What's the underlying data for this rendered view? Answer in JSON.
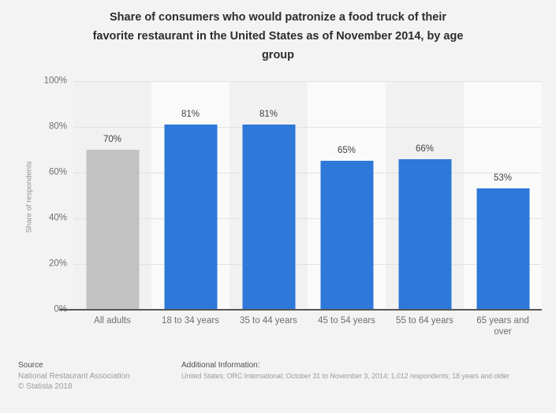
{
  "header": {
    "title_lines": [
      "Share of consumers who would patronize a food truck of their",
      "favorite restaurant in the United States as of November 2014, by age",
      "group"
    ]
  },
  "chart_data": {
    "type": "bar",
    "title": "Share of consumers who would patronize a food truck of their favorite restaurant in the United States as of November 2014, by age group",
    "categories": [
      "All adults",
      "18 to 34 years",
      "35 to 44 years",
      "45 to 54 years",
      "55 to 64 years",
      "65 years and over"
    ],
    "values": [
      70,
      81,
      81,
      65,
      66,
      53
    ],
    "value_labels": [
      "70%",
      "81%",
      "81%",
      "65%",
      "66%",
      "53%"
    ],
    "xlabel": "",
    "ylabel": "Share of respondents",
    "ylim": [
      0,
      100
    ],
    "yticks": [
      0,
      20,
      40,
      60,
      80,
      100
    ],
    "ytick_labels": [
      "0%",
      "20%",
      "40%",
      "60%",
      "80%",
      "100%"
    ],
    "grid": true,
    "legend": false,
    "bar_colors": [
      "#c2c2c2",
      "#2d78d9",
      "#2d78d9",
      "#2d78d9",
      "#2d78d9",
      "#2d78d9"
    ]
  },
  "footer": {
    "source_label": "Source",
    "source_name": "National Restaurant Association",
    "copyright": "© Statista 2018",
    "additional_label": "Additional Information:",
    "additional_text": "United States; ORC International; October 31 to November 3, 2014; 1,012 respondents; 18 years and older"
  },
  "colors": {
    "background": "#f4f3f4",
    "stripe_dark": "#f2f1f2",
    "stripe_light": "#fafafa",
    "bar_blue": "#2d78d9",
    "bar_gray": "#c2c2c2",
    "gridline": "#e3e2e3",
    "axis": "#565656"
  }
}
